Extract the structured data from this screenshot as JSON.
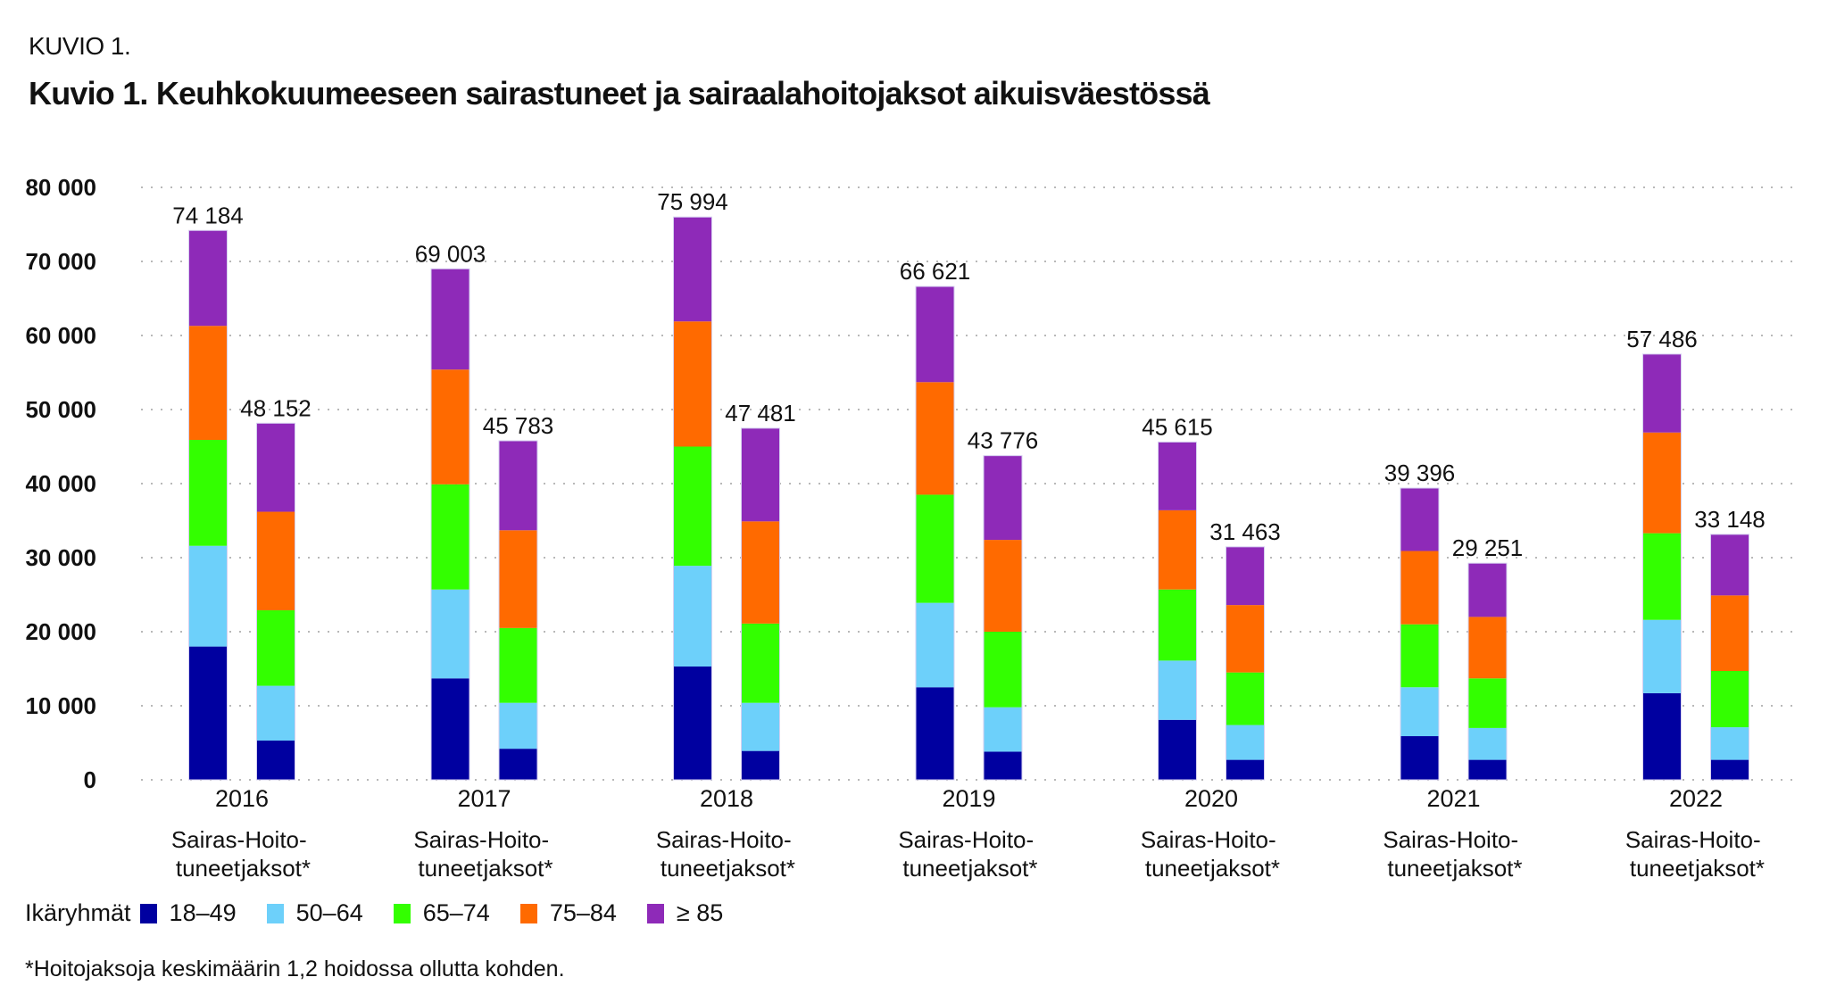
{
  "header": {
    "kicker": "KUVIO 1.",
    "title": "Kuvio 1. Keuhkokuumeeseen sairastuneet ja sairaalahoitojaksot aikuisväestössä"
  },
  "legend": {
    "title": "Ikäryhmät",
    "items": [
      {
        "label": "18–49",
        "color": "#0000A0"
      },
      {
        "label": "50–64",
        "color": "#6DD0FA"
      },
      {
        "label": "65–74",
        "color": "#33FF00"
      },
      {
        "label": "75–84",
        "color": "#FF6A00"
      },
      {
        "label": "≥ 85",
        "color": "#8E2AB8"
      }
    ]
  },
  "footnote": "*Hoitojaksoja keskimäärin 1,2 hoidossa ollutta kohden.",
  "chart_data": {
    "type": "bar",
    "stacked": true,
    "title": "Kuvio 1. Keuhkokuumeeseen sairastuneet ja sairaalahoitojaksot aikuisväestössä",
    "xlabel": "",
    "ylabel": "",
    "ylim": [
      0,
      80000
    ],
    "yticks": [
      0,
      10000,
      20000,
      30000,
      40000,
      50000,
      60000,
      70000,
      80000
    ],
    "ytick_labels": [
      "0",
      "10 000",
      "20 000",
      "30 000",
      "40 000",
      "50 000",
      "60 000",
      "70 000",
      "80 000"
    ],
    "grid": true,
    "legend_position": "bottom-left",
    "groups": [
      "2016",
      "2017",
      "2018",
      "2019",
      "2020",
      "2021",
      "2022"
    ],
    "subcategories": [
      {
        "label_line1": "Sairas-",
        "label_line2": "tuneet"
      },
      {
        "label_line1": "Hoito-",
        "label_line2": "jaksot*"
      }
    ],
    "series_names": [
      "18–49",
      "50–64",
      "65–74",
      "75–84",
      "≥ 85"
    ],
    "bars": [
      {
        "group": "2016",
        "sub": 0,
        "total": 74184,
        "total_label": "74 184",
        "values": [
          18000,
          13600,
          14300,
          15400,
          12884
        ]
      },
      {
        "group": "2016",
        "sub": 1,
        "total": 48152,
        "total_label": "48 152",
        "values": [
          5300,
          7400,
          10200,
          13300,
          11952
        ]
      },
      {
        "group": "2017",
        "sub": 0,
        "total": 69003,
        "total_label": "69 003",
        "values": [
          13700,
          12000,
          14200,
          15500,
          13603
        ]
      },
      {
        "group": "2017",
        "sub": 1,
        "total": 45783,
        "total_label": "45 783",
        "values": [
          4200,
          6200,
          10100,
          13200,
          12083
        ]
      },
      {
        "group": "2018",
        "sub": 0,
        "total": 75994,
        "total_label": "75 994",
        "values": [
          15300,
          13600,
          16100,
          16900,
          14094
        ]
      },
      {
        "group": "2018",
        "sub": 1,
        "total": 47481,
        "total_label": "47 481",
        "values": [
          3900,
          6500,
          10700,
          13800,
          12581
        ]
      },
      {
        "group": "2019",
        "sub": 0,
        "total": 66621,
        "total_label": "66 621",
        "values": [
          12500,
          11400,
          14600,
          15200,
          12921
        ]
      },
      {
        "group": "2019",
        "sub": 1,
        "total": 43776,
        "total_label": "43 776",
        "values": [
          3800,
          6000,
          10200,
          12400,
          11376
        ]
      },
      {
        "group": "2020",
        "sub": 0,
        "total": 45615,
        "total_label": "45 615",
        "values": [
          8100,
          8000,
          9600,
          10700,
          9215
        ]
      },
      {
        "group": "2020",
        "sub": 1,
        "total": 31463,
        "total_label": "31 463",
        "values": [
          2700,
          4700,
          7100,
          9100,
          7863
        ]
      },
      {
        "group": "2021",
        "sub": 0,
        "total": 39396,
        "total_label": "39 396",
        "values": [
          5900,
          6600,
          8500,
          9900,
          8496
        ]
      },
      {
        "group": "2021",
        "sub": 1,
        "total": 29251,
        "total_label": "29 251",
        "values": [
          2700,
          4300,
          6700,
          8300,
          7251
        ]
      },
      {
        "group": "2022",
        "sub": 0,
        "total": 57486,
        "total_label": "57 486",
        "values": [
          11700,
          9900,
          11700,
          13600,
          10586
        ]
      },
      {
        "group": "2022",
        "sub": 1,
        "total": 33148,
        "total_label": "33 148",
        "values": [
          2700,
          4400,
          7600,
          10200,
          8248
        ]
      }
    ]
  }
}
